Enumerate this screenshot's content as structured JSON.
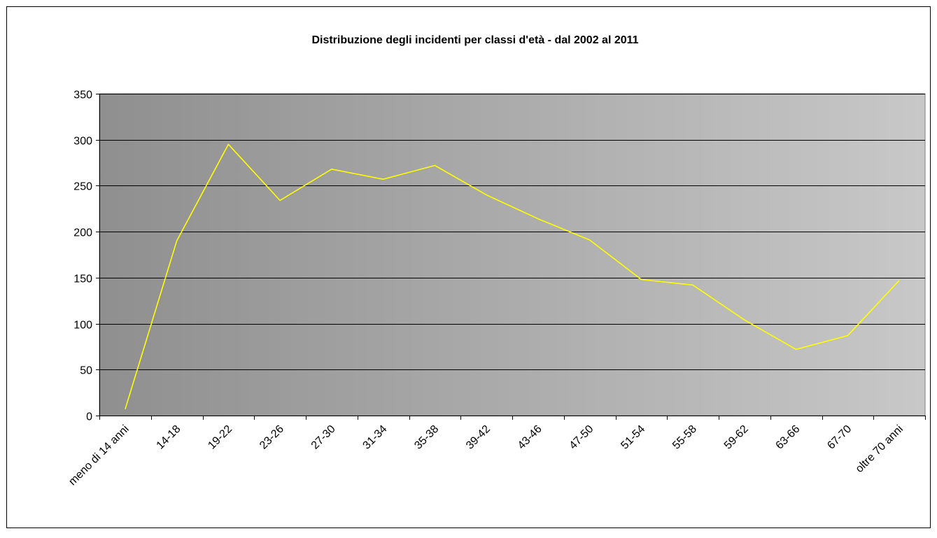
{
  "chart_data": {
    "type": "line",
    "title": "Distribuzione degli incidenti per classi d'età - dal 2002 al 2011",
    "xlabel": "",
    "ylabel": "",
    "categories": [
      "meno di 14 anni",
      "14-18",
      "19-22",
      "23-26",
      "27-30",
      "31-34",
      "35-38",
      "39-42",
      "43-46",
      "47-50",
      "51-54",
      "55-58",
      "59-62",
      "63-66",
      "67-70",
      "oltre 70 anni"
    ],
    "y_ticks": [
      "0",
      "50",
      "100",
      "150",
      "200",
      "250",
      "300",
      "350"
    ],
    "ylim": [
      0,
      350
    ],
    "series": [
      {
        "values": [
          7,
          190,
          295,
          234,
          268,
          257,
          272,
          240,
          214,
          191,
          148,
          142,
          104,
          72,
          87,
          147
        ]
      }
    ],
    "grid": "horizontal",
    "legend": "none",
    "colors": {
      "line": "#ffff00",
      "plot_gradient_start": "#8f8f8f",
      "plot_gradient_end": "#c8c8c8",
      "gridline": "#000000",
      "border": "#000000"
    }
  }
}
